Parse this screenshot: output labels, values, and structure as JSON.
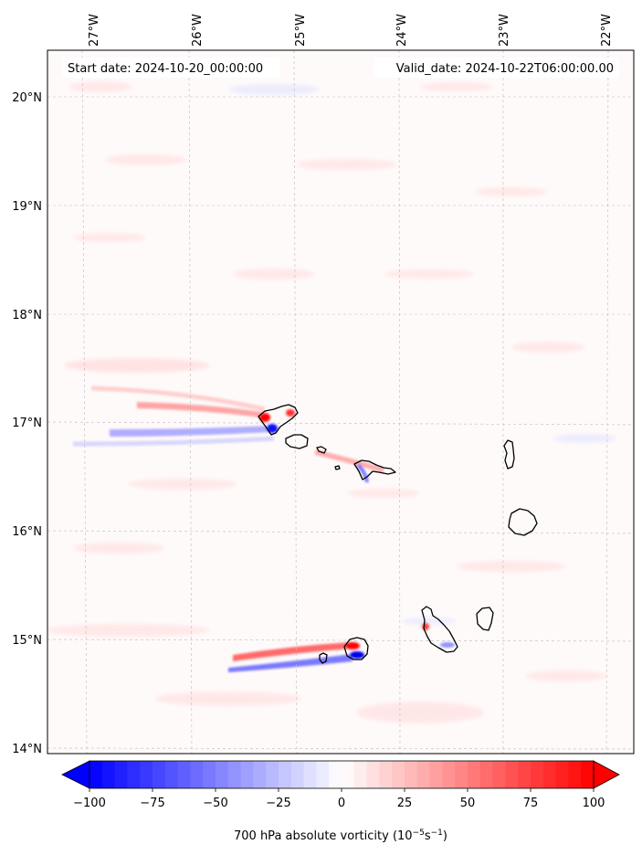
{
  "header": {
    "start_text": "Start date: 2024-10-20_00:00:00",
    "valid_text": "Valid_date: 2024-10-22T06:00:00.00"
  },
  "map": {
    "lon_labels": [
      "27°W",
      "26°W",
      "25°W",
      "24°W",
      "23°W",
      "22°W"
    ],
    "lat_labels": [
      "20°N",
      "19°N",
      "18°N",
      "17°N",
      "16°N",
      "15°N",
      "14°N"
    ],
    "field_name": "700 hPa absolute vorticity",
    "gridlines": true,
    "coastline_color": "#000000"
  },
  "colorbar": {
    "ticks": [
      "−100",
      "−75",
      "−50",
      "−25",
      "0",
      "25",
      "50",
      "75",
      "100"
    ],
    "min": -100,
    "max": 100,
    "label_prefix": "700 hPa absolute vorticity (10",
    "label_exp1": "−5",
    "label_mid": "s",
    "label_exp2": "−1",
    "label_suffix": ")",
    "colormap": "bwr",
    "low_color": "#0000ff",
    "mid_color": "#ffffff",
    "high_color": "#ff0000"
  }
}
